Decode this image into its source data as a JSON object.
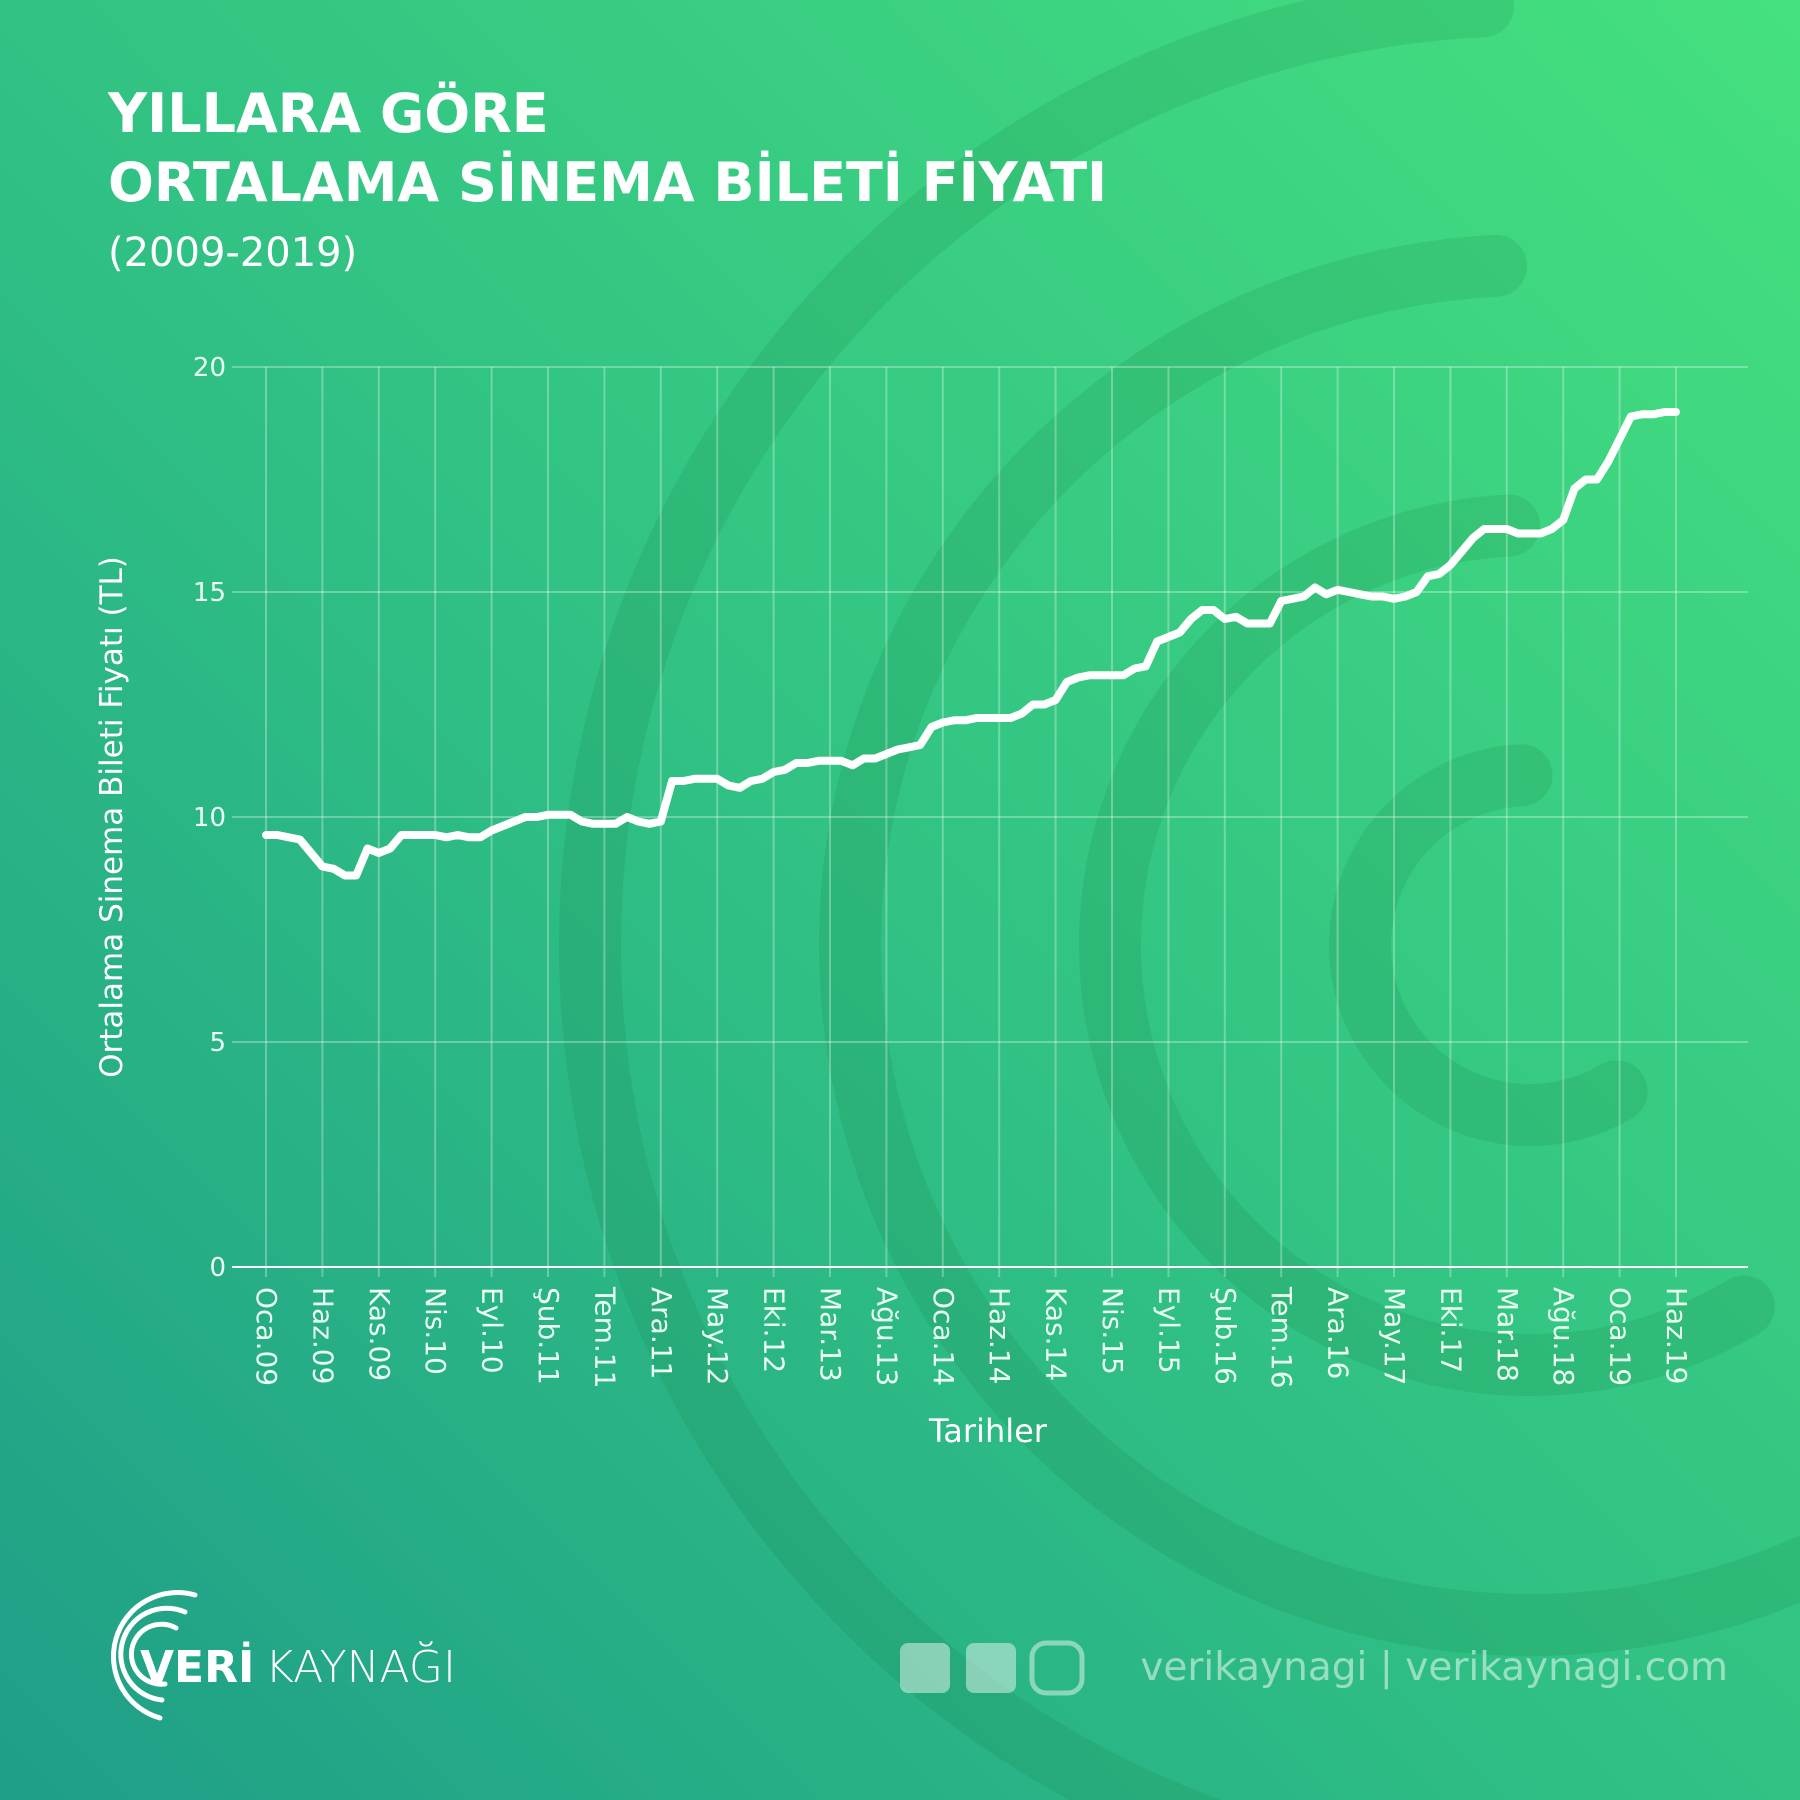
{
  "chart_data": {
    "type": "line",
    "title": [
      "YILLARA GÖRE",
      "ORTALAMA SİNEMA BİLETİ FİYATI"
    ],
    "subtitle": "(2009-2019)",
    "y_label": "Ortalama Sinema Bileti Fiyatı (TL)",
    "x_label": "Tarihler",
    "categories": [
      "Oca.09",
      null,
      null,
      null,
      null,
      "Haz.09",
      null,
      null,
      null,
      null,
      "Kas.09",
      null,
      null,
      null,
      null,
      "Nis.10",
      null,
      null,
      null,
      null,
      "Eyl.10",
      null,
      null,
      null,
      null,
      "Şub.11",
      null,
      null,
      null,
      null,
      "Tem.11",
      null,
      null,
      null,
      null,
      "Ara.11",
      null,
      null,
      null,
      null,
      "May.12",
      null,
      null,
      null,
      null,
      "Eki.12",
      null,
      null,
      null,
      null,
      "Mar.13",
      null,
      null,
      null,
      null,
      "Ağu.13",
      null,
      null,
      null,
      null,
      "Oca.14",
      null,
      null,
      null,
      null,
      "Haz.14",
      null,
      null,
      null,
      null,
      "Kas.14",
      null,
      null,
      null,
      null,
      "Nis.15",
      null,
      null,
      null,
      null,
      "Eyl.15",
      null,
      null,
      null,
      null,
      "Şub.16",
      null,
      null,
      null,
      null,
      "Tem.16",
      null,
      null,
      null,
      null,
      "Ara.16",
      null,
      null,
      null,
      null,
      "May.17",
      null,
      null,
      null,
      null,
      "Eki.17",
      null,
      null,
      null,
      null,
      "Mar.18",
      null,
      null,
      null,
      null,
      "Ağu.18",
      null,
      null,
      null,
      null,
      "Oca.19",
      null,
      null,
      null,
      null,
      "Haz.19"
    ],
    "values": [
      9.6,
      9.6,
      9.55,
      9.5,
      9.2,
      8.9,
      8.85,
      8.7,
      8.7,
      9.3,
      9.2,
      9.3,
      9.6,
      9.6,
      9.6,
      9.6,
      9.55,
      9.6,
      9.55,
      9.55,
      9.7,
      9.8,
      9.9,
      10.0,
      10.0,
      10.05,
      10.05,
      10.05,
      9.9,
      9.85,
      9.85,
      9.85,
      10.0,
      9.9,
      9.85,
      9.9,
      10.8,
      10.8,
      10.85,
      10.85,
      10.85,
      10.7,
      10.65,
      10.8,
      10.85,
      11.0,
      11.05,
      11.2,
      11.2,
      11.25,
      11.25,
      11.25,
      11.15,
      11.3,
      11.3,
      11.4,
      11.5,
      11.55,
      11.6,
      12.0,
      12.1,
      12.15,
      12.15,
      12.2,
      12.2,
      12.2,
      12.2,
      12.3,
      12.5,
      12.5,
      12.6,
      13.0,
      13.1,
      13.15,
      13.15,
      13.15,
      13.15,
      13.3,
      13.35,
      13.9,
      14.0,
      14.1,
      14.4,
      14.6,
      14.6,
      14.4,
      14.45,
      14.3,
      14.3,
      14.3,
      14.8,
      14.85,
      14.9,
      15.1,
      14.95,
      15.05,
      15.0,
      14.95,
      14.9,
      14.9,
      14.85,
      14.9,
      15.0,
      15.35,
      15.4,
      15.6,
      15.9,
      16.2,
      16.4,
      16.4,
      16.4,
      16.3,
      16.3,
      16.3,
      16.4,
      16.6,
      17.3,
      17.5,
      17.5,
      17.9,
      18.4,
      18.9,
      18.95,
      18.95,
      19.0,
      19.0
    ],
    "color": "#ffffff",
    "ylim": [
      0,
      20
    ],
    "yticks": [
      0,
      5,
      10,
      15,
      20
    ],
    "grid": true,
    "footer": {
      "brand_bold": "VERİ",
      "brand_light": "KAYNAĞI",
      "social": "verikaynagi | verikaynagi.com"
    }
  }
}
